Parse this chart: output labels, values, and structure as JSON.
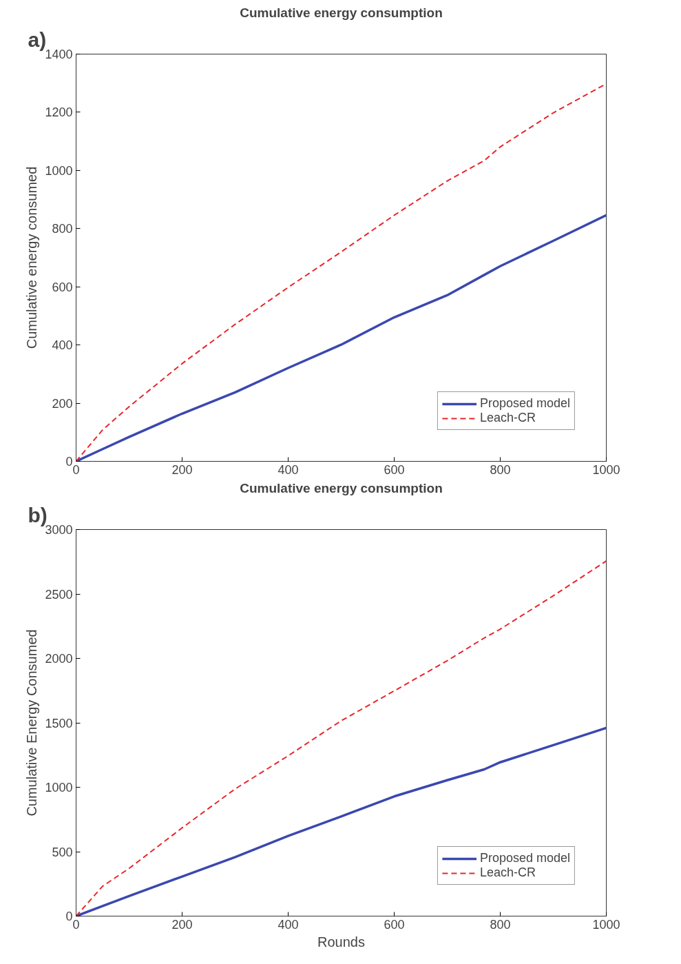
{
  "chart_data": [
    {
      "type": "line",
      "title": "Cumulative energy consumption",
      "ylabel": "Cumulative energy consumed",
      "annotations": [
        "a)"
      ],
      "x": [
        0,
        50,
        100,
        200,
        300,
        400,
        500,
        600,
        700,
        770,
        800,
        900,
        1000
      ],
      "series": [
        {
          "name": "Proposed model",
          "color": "#3a48b0",
          "line_style": "solid",
          "values": [
            0,
            42,
            84,
            164,
            237,
            321,
            401,
            495,
            571,
            641,
            671,
            758,
            846
          ]
        },
        {
          "name": "Leach-CR",
          "color": "#e8262b",
          "line_style": "dashed",
          "values": [
            0,
            108,
            188,
            336,
            471,
            598,
            720,
            846,
            964,
            1034,
            1081,
            1198,
            1298
          ]
        }
      ],
      "xlim": [
        0,
        1000
      ],
      "ylim": [
        0,
        1400
      ],
      "xticks": [
        0,
        200,
        400,
        600,
        800,
        1000
      ],
      "yticks": [
        0,
        200,
        400,
        600,
        800,
        1000,
        1200,
        1400
      ],
      "grid": false,
      "legend": "bottom right"
    },
    {
      "type": "line",
      "title": "Cumulative energy consumption",
      "xlabel": "Rounds",
      "ylabel": "Cumulative Energy Consumed",
      "annotations": [
        "b)"
      ],
      "x": [
        0,
        50,
        100,
        200,
        300,
        400,
        500,
        600,
        700,
        770,
        800,
        900,
        1000
      ],
      "series": [
        {
          "name": "Proposed model",
          "color": "#3a48b0",
          "line_style": "solid",
          "values": [
            0,
            78,
            156,
            307,
            458,
            622,
            773,
            929,
            1055,
            1139,
            1194,
            1327,
            1461
          ]
        },
        {
          "name": "Leach-CR",
          "color": "#e8262b",
          "line_style": "dashed",
          "values": [
            0,
            232,
            370,
            685,
            987,
            1244,
            1516,
            1748,
            1982,
            2159,
            2227,
            2486,
            2756
          ]
        }
      ],
      "xlim": [
        0,
        1000
      ],
      "ylim": [
        0,
        3000
      ],
      "xticks": [
        0,
        200,
        400,
        600,
        800,
        1000
      ],
      "yticks": [
        0,
        500,
        1000,
        1500,
        2000,
        2500,
        3000
      ],
      "grid": false,
      "legend": "bottom right"
    }
  ]
}
